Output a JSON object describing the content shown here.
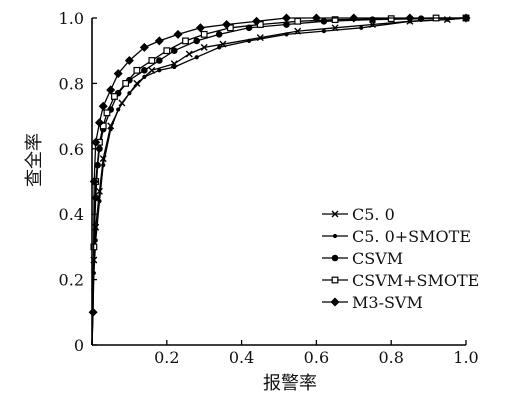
{
  "chart_data": {
    "type": "line",
    "xlabel": "报警率",
    "ylabel": "查全率",
    "xlim": [
      0,
      1.0
    ],
    "ylim": [
      0,
      1.0
    ],
    "grid": false,
    "legend_position": "bottom-right",
    "x_ticks": [
      {
        "value": 0.2,
        "label": "0.2"
      },
      {
        "value": 0.4,
        "label": "0.4"
      },
      {
        "value": 0.6,
        "label": "0.6"
      },
      {
        "value": 0.8,
        "label": "0.8"
      },
      {
        "value": 1.0,
        "label": "1.0"
      }
    ],
    "y_ticks": [
      {
        "value": 0,
        "label": "0"
      },
      {
        "value": 0.2,
        "label": "0.2"
      },
      {
        "value": 0.4,
        "label": "0.4"
      },
      {
        "value": 0.6,
        "label": "0.6"
      },
      {
        "value": 0.8,
        "label": "0.8"
      },
      {
        "value": 1.0,
        "label": "1.0"
      }
    ],
    "series": [
      {
        "name": "C5.0",
        "marker": "x",
        "x": [
          0,
          0.005,
          0.01,
          0.02,
          0.03,
          0.05,
          0.08,
          0.12,
          0.16,
          0.22,
          0.26,
          0.3,
          0.35,
          0.45,
          0.55,
          0.65,
          0.75,
          0.85,
          0.95,
          1.0
        ],
        "y": [
          0,
          0.26,
          0.36,
          0.47,
          0.57,
          0.67,
          0.74,
          0.8,
          0.84,
          0.86,
          0.89,
          0.91,
          0.92,
          0.94,
          0.96,
          0.97,
          0.98,
          0.99,
          0.995,
          1.0
        ]
      },
      {
        "name": "C5.0+SMOTE",
        "marker": "small-dot",
        "x": [
          0,
          0.005,
          0.01,
          0.02,
          0.03,
          0.05,
          0.07,
          0.1,
          0.14,
          0.18,
          0.22,
          0.28,
          0.34,
          0.42,
          0.52,
          0.62,
          0.72,
          0.85,
          0.95,
          1.0
        ],
        "y": [
          0,
          0.22,
          0.32,
          0.44,
          0.55,
          0.66,
          0.72,
          0.77,
          0.82,
          0.84,
          0.85,
          0.88,
          0.91,
          0.93,
          0.95,
          0.96,
          0.97,
          0.99,
          0.995,
          1.0
        ]
      },
      {
        "name": "CSVM",
        "marker": "dot",
        "x": [
          0,
          0.005,
          0.01,
          0.015,
          0.02,
          0.03,
          0.05,
          0.07,
          0.1,
          0.14,
          0.18,
          0.22,
          0.28,
          0.34,
          0.42,
          0.52,
          0.62,
          0.75,
          0.88,
          1.0
        ],
        "y": [
          0,
          0.3,
          0.45,
          0.55,
          0.6,
          0.66,
          0.72,
          0.77,
          0.81,
          0.84,
          0.87,
          0.9,
          0.93,
          0.95,
          0.97,
          0.98,
          0.99,
          0.995,
          0.998,
          1.0
        ]
      },
      {
        "name": "CSVM+SMOTE",
        "marker": "square",
        "x": [
          0,
          0.005,
          0.01,
          0.02,
          0.03,
          0.04,
          0.06,
          0.09,
          0.12,
          0.16,
          0.2,
          0.25,
          0.3,
          0.37,
          0.45,
          0.55,
          0.65,
          0.8,
          0.92,
          1.0
        ],
        "y": [
          0,
          0.3,
          0.5,
          0.62,
          0.67,
          0.71,
          0.76,
          0.8,
          0.84,
          0.87,
          0.9,
          0.93,
          0.95,
          0.97,
          0.98,
          0.99,
          0.995,
          0.998,
          1.0,
          1.0
        ]
      },
      {
        "name": "M3-SVM",
        "marker": "diamond",
        "x": [
          0,
          0.003,
          0.006,
          0.01,
          0.02,
          0.03,
          0.05,
          0.07,
          0.1,
          0.14,
          0.18,
          0.23,
          0.29,
          0.36,
          0.44,
          0.52,
          0.6,
          0.7,
          0.85,
          1.0
        ],
        "y": [
          0,
          0.1,
          0.5,
          0.62,
          0.68,
          0.73,
          0.78,
          0.83,
          0.87,
          0.91,
          0.93,
          0.95,
          0.97,
          0.98,
          0.99,
          1.0,
          1.0,
          1.0,
          1.0,
          1.0
        ]
      }
    ],
    "legend": [
      {
        "label": "C5. 0",
        "marker": "x"
      },
      {
        "label": "C5. 0+SMOTE",
        "marker": "small-dot"
      },
      {
        "label": "CSVM",
        "marker": "dot"
      },
      {
        "label": "CSVM+SMOTE",
        "marker": "square"
      },
      {
        "label": "M3-SVM",
        "marker": "diamond"
      }
    ]
  }
}
